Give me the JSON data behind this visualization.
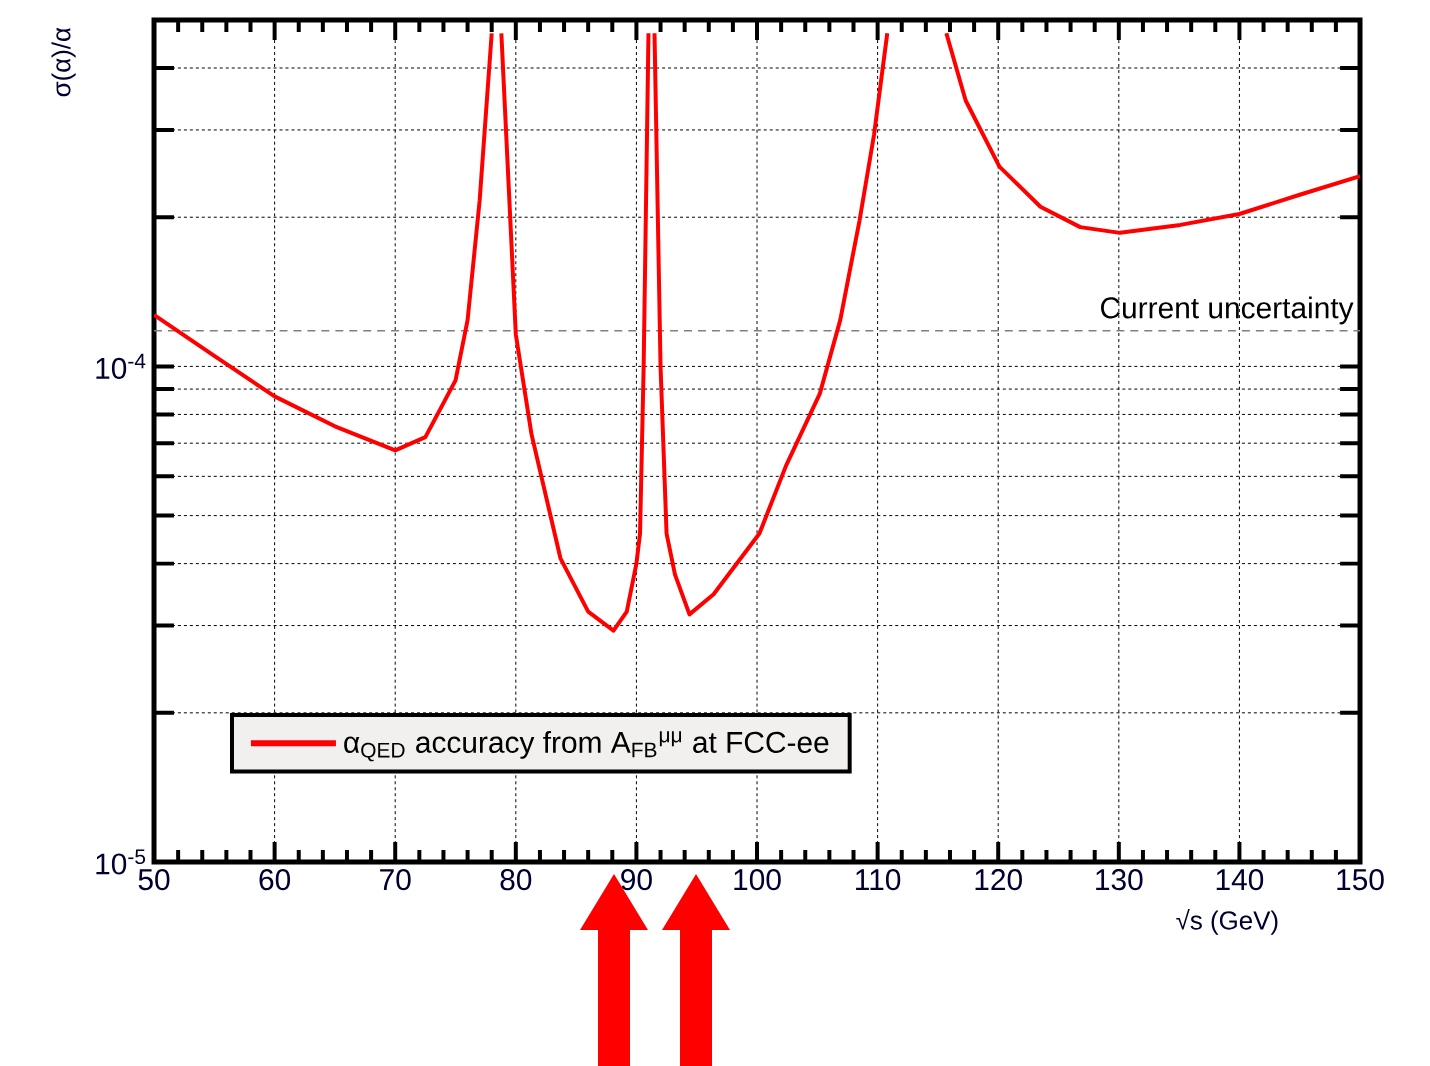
{
  "chart_data": {
    "type": "line",
    "xlabel": "√s (GeV)",
    "ylabel": "σ(α)/α",
    "series": [
      {
        "name": "α$_{QED}$ accuracy from A$_{FB}$$^{μμ}$ at FCC-ee",
        "color": "#ff0000",
        "x": [
          50,
          55,
          60,
          65,
          70,
          72.5,
          75,
          76,
          77,
          78.0,
          78.4,
          78.8,
          80,
          81.3,
          83.7,
          86,
          88.1,
          89.2,
          90,
          90.3,
          90.6,
          91.0,
          91.25,
          91.5,
          92,
          92.5,
          93.2,
          94.4,
          96.4,
          100.2,
          102.4,
          105.2,
          106.9,
          108.5,
          109.7,
          110.8,
          113.2,
          115.7,
          117.3,
          120.1,
          123.5,
          126.8,
          130.1,
          135.1,
          140,
          145,
          150
        ],
        "values": [
          0.000127,
          0.000105,
          8.7e-05,
          7.57e-05,
          6.77e-05,
          7.2e-05,
          9.37e-05,
          0.000124,
          0.000216,
          0.00047,
          null,
          0.00047,
          0.000116,
          7.3e-05,
          4.1e-05,
          3.2e-05,
          2.93e-05,
          3.2e-05,
          4e-05,
          4.6e-05,
          0.0001,
          0.00047,
          null,
          0.00047,
          0.0001,
          4.6e-05,
          3.8e-05,
          3.16e-05,
          3.47e-05,
          4.6e-05,
          6.3e-05,
          8.8e-05,
          0.000124,
          0.000197,
          0.000293,
          0.00047,
          null,
          0.00047,
          0.000344,
          0.000253,
          0.00021,
          0.000191,
          0.000186,
          0.000193,
          0.000203,
          0.000222,
          0.000242
        ]
      }
    ],
    "log": "y",
    "xlim": [
      50,
      150
    ],
    "ylim": [
      1e-05,
      0.0005
    ],
    "xticks": [
      50,
      60,
      70,
      80,
      90,
      100,
      110,
      120,
      130,
      140,
      150
    ],
    "yticks": [
      {
        "value": 1e-05,
        "label": "10$^{-5}$"
      },
      {
        "value": 2e-05,
        "label": null
      },
      {
        "value": 3e-05,
        "label": null
      },
      {
        "value": 4e-05,
        "label": null
      },
      {
        "value": 5e-05,
        "label": null
      },
      {
        "value": 6e-05,
        "label": null
      },
      {
        "value": 7e-05,
        "label": null
      },
      {
        "value": 8e-05,
        "label": null
      },
      {
        "value": 9e-05,
        "label": null
      },
      {
        "value": 0.0001,
        "label": "10$^{-4}$"
      },
      {
        "value": 0.0002,
        "label": null
      },
      {
        "value": 0.0003,
        "label": null
      },
      {
        "value": 0.0004,
        "label": null
      }
    ],
    "ref_lines": [
      {
        "axis": "y",
        "value": 0.000118,
        "label": "Current uncertainty",
        "color": "#808080",
        "line_style": "dashed"
      }
    ],
    "grid": true,
    "legend": "bottom left",
    "line_style": "solid",
    "marker": "none"
  }
}
